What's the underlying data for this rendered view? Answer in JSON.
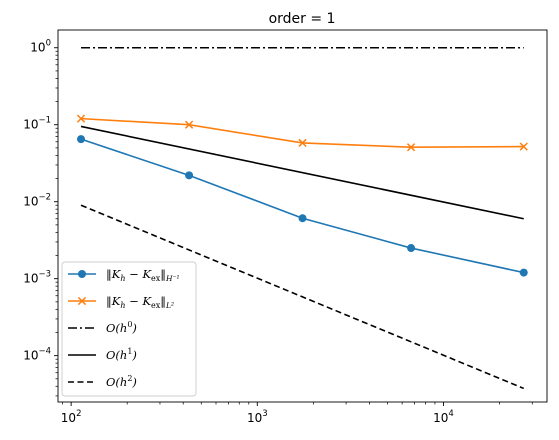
{
  "chart_data": {
    "type": "line",
    "title": "order = 1",
    "xlabel": "",
    "ylabel": "",
    "xscale": "log",
    "yscale": "log",
    "xlim": [
      85,
      36000
    ],
    "ylim": [
      2.5e-05,
      1.7
    ],
    "xticks": [
      {
        "value": 100,
        "base": "10",
        "exp": "2"
      },
      {
        "value": 1000,
        "base": "10",
        "exp": "3"
      },
      {
        "value": 10000,
        "base": "10",
        "exp": "4"
      }
    ],
    "yticks": [
      {
        "value": 0.0001,
        "base": "10",
        "exp": "−4"
      },
      {
        "value": 0.001,
        "base": "10",
        "exp": "−3"
      },
      {
        "value": 0.01,
        "base": "10",
        "exp": "−2"
      },
      {
        "value": 0.1,
        "base": "10",
        "exp": "−1"
      },
      {
        "value": 1,
        "base": "10",
        "exp": "0"
      }
    ],
    "grid": false,
    "legend_position": "lower-left",
    "series": [
      {
        "key": "h-1",
        "name": "‖K_h − K_ex‖_{H⁻¹}",
        "legend_main": "‖K",
        "legend_sub1": "h",
        "legend_mid": " − K",
        "legend_sub2": "ex",
        "legend_end": "‖",
        "legend_sub3": "H⁻¹",
        "color": "#1f77b4",
        "style": "solid",
        "marker": "circle",
        "x": [
          113,
          430,
          1750,
          6700,
          27000
        ],
        "y": [
          0.065,
          0.022,
          0.0061,
          0.0025,
          0.0012
        ]
      },
      {
        "key": "l2",
        "name": "‖K_h − K_ex‖_{L²}",
        "legend_main": "‖K",
        "legend_sub1": "h",
        "legend_mid": " − K",
        "legend_sub2": "ex",
        "legend_end": "‖",
        "legend_sub3": "L²",
        "color": "#ff7f0e",
        "style": "solid",
        "marker": "x",
        "x": [
          113,
          430,
          1750,
          6700,
          27000
        ],
        "y": [
          0.12,
          0.1,
          0.058,
          0.051,
          0.052
        ]
      },
      {
        "key": "o0",
        "name": "O(h^0)",
        "legend_main": "O(h",
        "legend_sup": "0",
        "legend_end": ")",
        "color": "#000000",
        "style": "dashdot",
        "marker": "none",
        "x": [
          113,
          27000
        ],
        "y": [
          1.0,
          1.0
        ]
      },
      {
        "key": "o1",
        "name": "O(h^1)",
        "legend_main": "O(h",
        "legend_sup": "1",
        "legend_end": ")",
        "color": "#000000",
        "style": "solid",
        "marker": "none",
        "x": [
          113,
          27000
        ],
        "y": [
          0.095,
          0.006
        ]
      },
      {
        "key": "o2",
        "name": "O(h^2)",
        "legend_main": "O(h",
        "legend_sup": "2",
        "legend_end": ")",
        "color": "#000000",
        "style": "dashed",
        "marker": "none",
        "x": [
          113,
          27000
        ],
        "y": [
          0.009,
          3.75e-05
        ]
      }
    ]
  }
}
